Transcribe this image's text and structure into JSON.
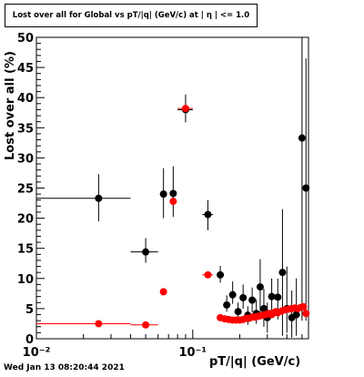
{
  "title": "Lost over all for Global vs pT/|q| (GeV/c) at | η | <= 1.0",
  "footer": "Wed Jan 13 08:20:44 2021",
  "chart_data": {
    "type": "scatter",
    "xlabel": "pT/|q| (GeV/c)",
    "ylabel": "Lost over all (%)",
    "xscale": "log",
    "xlim": [
      0.01,
      0.55
    ],
    "ylim": [
      0,
      50
    ],
    "x_tick_labels": [
      "10⁻²",
      "10⁻¹"
    ],
    "y_tick_labels": [
      "0",
      "5",
      "10",
      "15",
      "20",
      "25",
      "30",
      "35",
      "40",
      "45",
      "50"
    ],
    "series": [
      {
        "color": "#000000",
        "points": [
          {
            "x": 0.025,
            "xlo": 0.01,
            "xhi": 0.04,
            "y": 23.3,
            "ylo": 19.5,
            "yhi": 27.3
          },
          {
            "x": 0.05,
            "xlo": 0.04,
            "xhi": 0.06,
            "y": 14.4,
            "ylo": 12.6,
            "yhi": 16.7
          },
          {
            "x": 0.065,
            "y": 24.0,
            "ylo": 20.0,
            "yhi": 28.3
          },
          {
            "x": 0.075,
            "y": 24.1,
            "ylo": 20.2,
            "yhi": 28.6
          },
          {
            "x": 0.09,
            "xlo": 0.08,
            "xhi": 0.1,
            "y": 38.0,
            "ylo": 35.9,
            "yhi": 40.5
          },
          {
            "x": 0.125,
            "xlo": 0.115,
            "xhi": 0.135,
            "y": 20.6,
            "ylo": 18.0,
            "yhi": 23.0
          },
          {
            "x": 0.15,
            "y": 10.6,
            "ylo": 9.3,
            "yhi": 12.1
          },
          {
            "x": 0.165,
            "y": 5.6,
            "ylo": 4.5,
            "yhi": 7.2
          },
          {
            "x": 0.18,
            "y": 7.3,
            "ylo": 5.8,
            "yhi": 9.5
          },
          {
            "x": 0.195,
            "y": 4.5,
            "ylo": 3.1,
            "yhi": 6.0
          },
          {
            "x": 0.21,
            "y": 6.8,
            "ylo": 5.0,
            "yhi": 9.0
          },
          {
            "x": 0.225,
            "y": 3.9,
            "ylo": 2.3,
            "yhi": 5.4
          },
          {
            "x": 0.24,
            "y": 6.4,
            "ylo": 4.4,
            "yhi": 8.5
          },
          {
            "x": 0.255,
            "y": 4.2,
            "ylo": 2.5,
            "yhi": 6.5
          },
          {
            "x": 0.27,
            "y": 8.6,
            "ylo": 3.5,
            "yhi": 13.2
          },
          {
            "x": 0.285,
            "y": 5.0,
            "ylo": 2.0,
            "yhi": 8.3
          },
          {
            "x": 0.3,
            "y": 3.5,
            "ylo": 1.0,
            "yhi": 6.0
          },
          {
            "x": 0.32,
            "y": 7.0,
            "ylo": 3.5,
            "yhi": 10.0
          },
          {
            "x": 0.35,
            "y": 6.9,
            "ylo": 3.2,
            "yhi": 10.0
          },
          {
            "x": 0.375,
            "y": 11.0,
            "ylo": 0.5,
            "yhi": 21.5
          },
          {
            "x": 0.4,
            "y": 5.0,
            "ylo": 1.0,
            "yhi": 12.0
          },
          {
            "x": 0.43,
            "y": 3.5,
            "ylo": 0.2,
            "yhi": 8.0
          },
          {
            "x": 0.46,
            "y": 4.0,
            "ylo": 0.5,
            "yhi": 10.0
          },
          {
            "x": 0.5,
            "y": 33.3,
            "ylo": 3.0,
            "yhi": 50.0
          },
          {
            "x": 0.53,
            "y": 25.0,
            "ylo": 3.0,
            "yhi": 46.5
          }
        ]
      },
      {
        "color": "#ff0000",
        "points": [
          {
            "x": 0.025,
            "xlo": 0.01,
            "xhi": 0.04,
            "y": 2.5
          },
          {
            "x": 0.05,
            "xlo": 0.04,
            "xhi": 0.06,
            "y": 2.3
          },
          {
            "x": 0.065,
            "y": 7.8
          },
          {
            "x": 0.075,
            "y": 22.8
          },
          {
            "x": 0.09,
            "xlo": 0.08,
            "xhi": 0.1,
            "y": 38.2
          },
          {
            "x": 0.125,
            "xlo": 0.115,
            "xhi": 0.135,
            "y": 10.6
          },
          {
            "x": 0.15,
            "y": 3.5
          },
          {
            "x": 0.16,
            "y": 3.3
          },
          {
            "x": 0.17,
            "y": 3.2
          },
          {
            "x": 0.18,
            "y": 3.1
          },
          {
            "x": 0.19,
            "y": 3.1
          },
          {
            "x": 0.2,
            "y": 3.1
          },
          {
            "x": 0.21,
            "y": 3.2
          },
          {
            "x": 0.22,
            "y": 3.4
          },
          {
            "x": 0.23,
            "y": 3.4
          },
          {
            "x": 0.24,
            "y": 3.6
          },
          {
            "x": 0.25,
            "y": 3.6
          },
          {
            "x": 0.26,
            "y": 3.7
          },
          {
            "x": 0.27,
            "y": 3.8
          },
          {
            "x": 0.28,
            "y": 3.9
          },
          {
            "x": 0.29,
            "y": 4.0
          },
          {
            "x": 0.3,
            "y": 4.1
          },
          {
            "x": 0.31,
            "y": 4.2
          },
          {
            "x": 0.32,
            "y": 4.0
          },
          {
            "x": 0.33,
            "y": 4.3
          },
          {
            "x": 0.34,
            "y": 4.5
          },
          {
            "x": 0.35,
            "y": 4.3
          },
          {
            "x": 0.37,
            "y": 4.6
          },
          {
            "x": 0.39,
            "y": 4.8
          },
          {
            "x": 0.41,
            "y": 4.9
          },
          {
            "x": 0.43,
            "y": 5.0
          },
          {
            "x": 0.45,
            "y": 5.1
          },
          {
            "x": 0.47,
            "y": 5.0
          },
          {
            "x": 0.49,
            "y": 5.2
          },
          {
            "x": 0.51,
            "y": 5.3
          },
          {
            "x": 0.53,
            "y": 4.2
          }
        ]
      }
    ]
  }
}
